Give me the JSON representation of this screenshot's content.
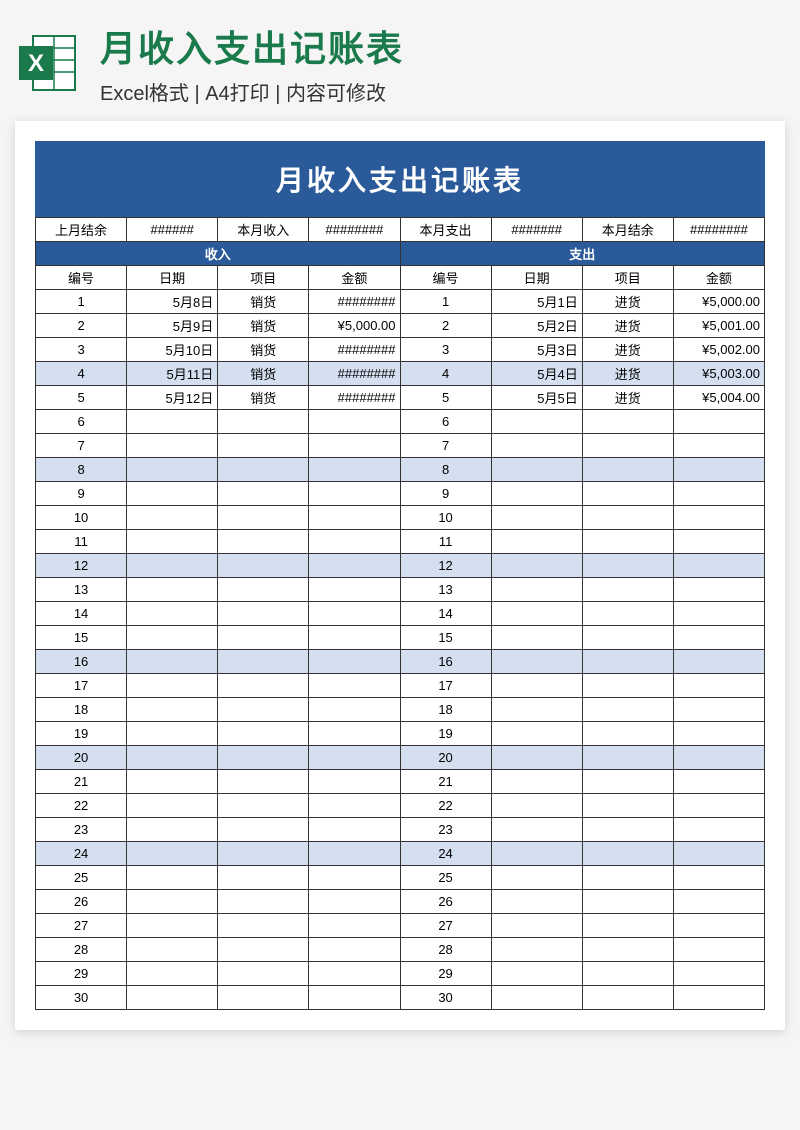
{
  "header": {
    "main_title": "月收入支出记账表",
    "sub_title": "Excel格式 | A4打印 | 内容可修改"
  },
  "sheet": {
    "title": "月收入支出记账表",
    "summary": {
      "last_balance": {
        "label": "上月结余",
        "value": "######"
      },
      "month_income": {
        "label": "本月收入",
        "value": "########"
      },
      "month_expense": {
        "label": "本月支出",
        "value": "#######"
      },
      "month_balance": {
        "label": "本月结余",
        "value": "########"
      }
    },
    "sections": {
      "income": "收入",
      "expense": "支出"
    },
    "columns": {
      "num": "编号",
      "date": "日期",
      "item": "项目",
      "amount": "金额"
    },
    "highlight_rows": [
      4,
      8,
      12,
      16,
      20,
      24
    ],
    "highlight_color": "#d4dff0",
    "header_bg": "#2a5a9a",
    "total_rows": 30,
    "income_data": [
      {
        "num": "1",
        "date": "5月8日",
        "item": "销货",
        "amount": "########"
      },
      {
        "num": "2",
        "date": "5月9日",
        "item": "销货",
        "amount": "¥5,000.00"
      },
      {
        "num": "3",
        "date": "5月10日",
        "item": "销货",
        "amount": "########"
      },
      {
        "num": "4",
        "date": "5月11日",
        "item": "销货",
        "amount": "########"
      },
      {
        "num": "5",
        "date": "5月12日",
        "item": "销货",
        "amount": "########"
      }
    ],
    "expense_data": [
      {
        "num": "1",
        "date": "5月1日",
        "item": "进货",
        "amount": "¥5,000.00"
      },
      {
        "num": "2",
        "date": "5月2日",
        "item": "进货",
        "amount": "¥5,001.00"
      },
      {
        "num": "3",
        "date": "5月3日",
        "item": "进货",
        "amount": "¥5,002.00"
      },
      {
        "num": "4",
        "date": "5月4日",
        "item": "进货",
        "amount": "¥5,003.00"
      },
      {
        "num": "5",
        "date": "5月5日",
        "item": "进货",
        "amount": "¥5,004.00"
      }
    ]
  }
}
